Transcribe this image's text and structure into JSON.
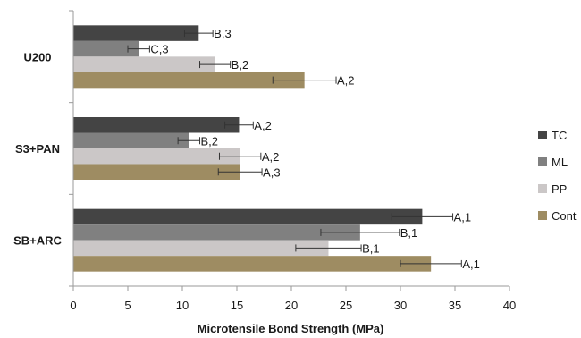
{
  "chart_data": {
    "type": "bar",
    "orientation": "horizontal",
    "xlabel": "Microtensile Bond Strength (MPa)",
    "ylabel": "",
    "xlim": [
      0,
      40
    ],
    "xticks": [
      "0",
      "5",
      "10",
      "15",
      "20",
      "25",
      "30",
      "35",
      "40"
    ],
    "grid": false,
    "legend_position": "right",
    "categories": [
      "U200",
      "S3+PAN",
      "SB+ARC"
    ],
    "series": [
      {
        "name": "TC",
        "color": "#444444",
        "values": [
          11.5,
          15.2,
          32.0
        ],
        "errors": [
          1.3,
          1.3,
          2.8
        ],
        "labels": [
          "B,3",
          "A,2",
          "A,1"
        ]
      },
      {
        "name": "ML",
        "color": "#808080",
        "values": [
          6.0,
          10.6,
          26.3
        ],
        "errors": [
          1.0,
          1.0,
          3.6
        ],
        "labels": [
          "C,3",
          "B,2",
          "B,1"
        ]
      },
      {
        "name": "PP",
        "color": "#cbc7c7",
        "values": [
          13.0,
          15.3,
          23.4
        ],
        "errors": [
          1.4,
          1.9,
          3.0
        ],
        "labels": [
          "B,2",
          "A,2",
          "B,1"
        ]
      },
      {
        "name": "Cont",
        "color": "#9e8c62",
        "values": [
          21.2,
          15.3,
          32.8
        ],
        "errors": [
          2.9,
          2.0,
          2.8
        ],
        "labels": [
          "A,2",
          "A,3",
          "A,1"
        ]
      }
    ]
  }
}
